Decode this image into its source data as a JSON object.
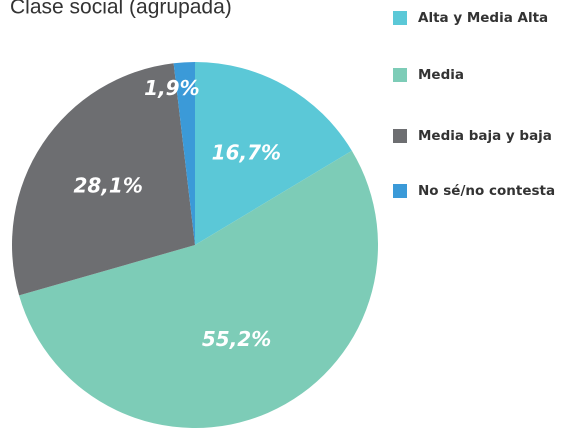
{
  "chart_data": {
    "type": "pie",
    "title": "Clase social (agrupada)",
    "categories": [
      "Alta y Media Alta",
      "Media",
      "Media baja y baja",
      "No sé/no contesta"
    ],
    "values": [
      16.7,
      55.2,
      28.1,
      1.9
    ],
    "value_labels": [
      "16,7%",
      "55,2%",
      "28,1%",
      "1,9%"
    ],
    "colors": [
      "#5bc8d7",
      "#7dccb7",
      "#6d6e71",
      "#3b9ad8"
    ]
  }
}
